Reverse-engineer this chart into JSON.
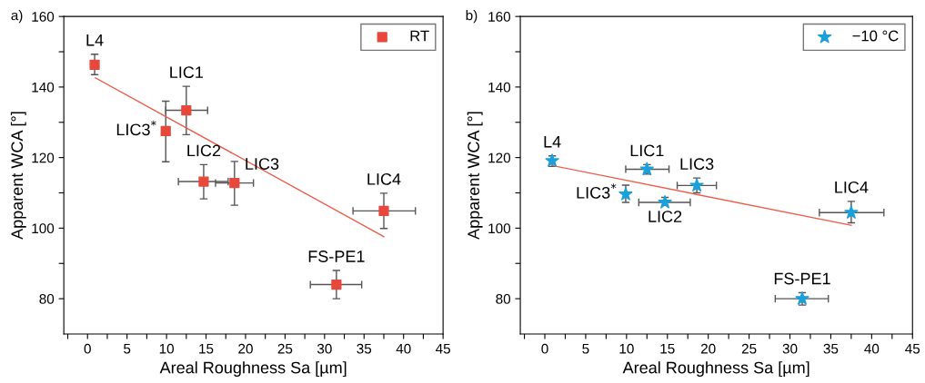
{
  "chart_data": [
    {
      "type": "scatter",
      "xlabel": "Areal Roughness Sa [µm]",
      "ylabel": "Apparent WCA [°]",
      "xlim": [
        -3,
        45
      ],
      "ylim": [
        70,
        160
      ],
      "xticks": [
        0,
        5,
        10,
        15,
        20,
        25,
        30,
        35,
        40,
        45,
        {
          "value": -2.5,
          "label": null
        },
        {
          "value": 2.5,
          "label": null
        },
        {
          "value": 7.5,
          "label": null
        },
        {
          "value": 12.5,
          "label": null
        },
        {
          "value": 17.5,
          "label": null
        },
        {
          "value": 22.5,
          "label": null
        },
        {
          "value": 27.5,
          "label": null
        },
        {
          "value": 32.5,
          "label": null
        },
        {
          "value": 37.5,
          "label": null
        },
        {
          "value": 42.5,
          "label": null
        }
      ],
      "yticks": [
        80,
        100,
        120,
        140,
        160,
        {
          "value": 90,
          "label": null
        },
        {
          "value": 110,
          "label": null
        },
        {
          "value": 130,
          "label": null
        },
        {
          "value": 150,
          "label": null
        }
      ],
      "legend": "top right",
      "grid": false,
      "series": [
        {
          "name": "RT",
          "marker": "square",
          "color": "#e8483c",
          "x": [
            0.9,
            9.9,
            12.5,
            14.7,
            18.6,
            31.5,
            37.5
          ],
          "values": [
            146.3,
            127.5,
            133.4,
            113.2,
            112.8,
            84.0,
            104.9
          ],
          "errors": [
            [
              143.5,
              149.3
            ],
            [
              118.8,
              136.0
            ],
            [
              126.5,
              140.2
            ],
            [
              108.3,
              118.0
            ],
            [
              106.5,
              118.9
            ],
            [
              80.0,
              88.0
            ],
            [
              99.9,
              109.9
            ]
          ],
          "xerrors": [
            null,
            null,
            [
              9.9,
              15.2
            ],
            [
              11.5,
              17.8
            ],
            [
              16.2,
              21.0
            ],
            [
              28.2,
              34.7
            ],
            [
              33.6,
              41.5
            ]
          ]
        },
        {
          "type": "line",
          "color": "#f05a4a",
          "x": [
            1,
            37.5
          ],
          "values": [
            142.6,
            97.6
          ]
        }
      ],
      "annotations": [
        "a)",
        {
          "text": "L4",
          "x": 0.9,
          "y": 146.3
        },
        {
          "text": "LIC1",
          "x": 12.5,
          "y": 133.4
        },
        {
          "text": "LIC3$^{*}$",
          "x": 9.9,
          "y": 127.5
        },
        {
          "text": "LIC2",
          "x": 14.7,
          "y": 113.2
        },
        {
          "text": "LIC3",
          "x": 18.6,
          "y": 112.8
        },
        {
          "text": "LIC4",
          "x": 37.5,
          "y": 104.9
        },
        {
          "text": "FS-PE1",
          "x": 31.5,
          "y": 84.0
        }
      ]
    },
    {
      "type": "scatter",
      "xlabel": "Areal Roughness Sa [µm]",
      "ylabel": "Apparent WCA [°]",
      "xlim": [
        -3,
        45
      ],
      "ylim": [
        70,
        160
      ],
      "xticks": [
        0,
        5,
        10,
        15,
        20,
        25,
        30,
        35,
        40,
        45,
        {
          "value": -2.5,
          "label": null
        },
        {
          "value": 2.5,
          "label": null
        },
        {
          "value": 7.5,
          "label": null
        },
        {
          "value": 12.5,
          "label": null
        },
        {
          "value": 17.5,
          "label": null
        },
        {
          "value": 22.5,
          "label": null
        },
        {
          "value": 27.5,
          "label": null
        },
        {
          "value": 32.5,
          "label": null
        },
        {
          "value": 37.5,
          "label": null
        },
        {
          "value": 42.5,
          "label": null
        }
      ],
      "yticks": [
        80,
        100,
        120,
        140,
        160,
        {
          "value": 90,
          "label": null
        },
        {
          "value": 110,
          "label": null
        },
        {
          "value": 130,
          "label": null
        },
        {
          "value": 150,
          "label": null
        }
      ],
      "legend": "top right",
      "grid": false,
      "series": [
        {
          "name": "−10 °C",
          "marker": "star",
          "color": "#1aa0dc",
          "x": [
            0.9,
            9.9,
            12.5,
            14.7,
            18.6,
            31.5,
            37.5
          ],
          "values": [
            119.1,
            109.6,
            116.7,
            107.3,
            112.1,
            80.0,
            104.4
          ],
          "errors": [
            [
              117.5,
              120.5
            ],
            [
              107.3,
              112.2
            ],
            [
              115.3,
              118.0
            ],
            [
              106.5,
              108.7
            ],
            [
              110.0,
              114.2
            ],
            [
              78.2,
              81.7
            ],
            [
              101.5,
              107.6
            ]
          ],
          "xerrors": [
            null,
            null,
            [
              9.9,
              15.2
            ],
            [
              11.5,
              17.8
            ],
            [
              16.2,
              21.0
            ],
            [
              28.2,
              34.7
            ],
            [
              33.6,
              41.5
            ]
          ]
        },
        {
          "type": "line",
          "color": "#f05a4a",
          "x": [
            1,
            37.5
          ],
          "values": [
            117.7,
            100.8
          ]
        }
      ],
      "annotations": [
        "b)",
        {
          "text": "L4",
          "x": 0.9,
          "y": 119.1
        },
        {
          "text": "LIC1",
          "x": 12.5,
          "y": 116.7
        },
        {
          "text": "LIC3$^{*}$",
          "x": 9.9,
          "y": 109.6
        },
        {
          "text": "LIC2",
          "x": 14.7,
          "y": 107.3
        },
        {
          "text": "LIC3",
          "x": 18.6,
          "y": 112.1
        },
        {
          "text": "LIC4",
          "x": 37.5,
          "y": 104.4
        },
        {
          "text": "FS-PE1",
          "x": 31.5,
          "y": 80.0
        }
      ]
    }
  ]
}
